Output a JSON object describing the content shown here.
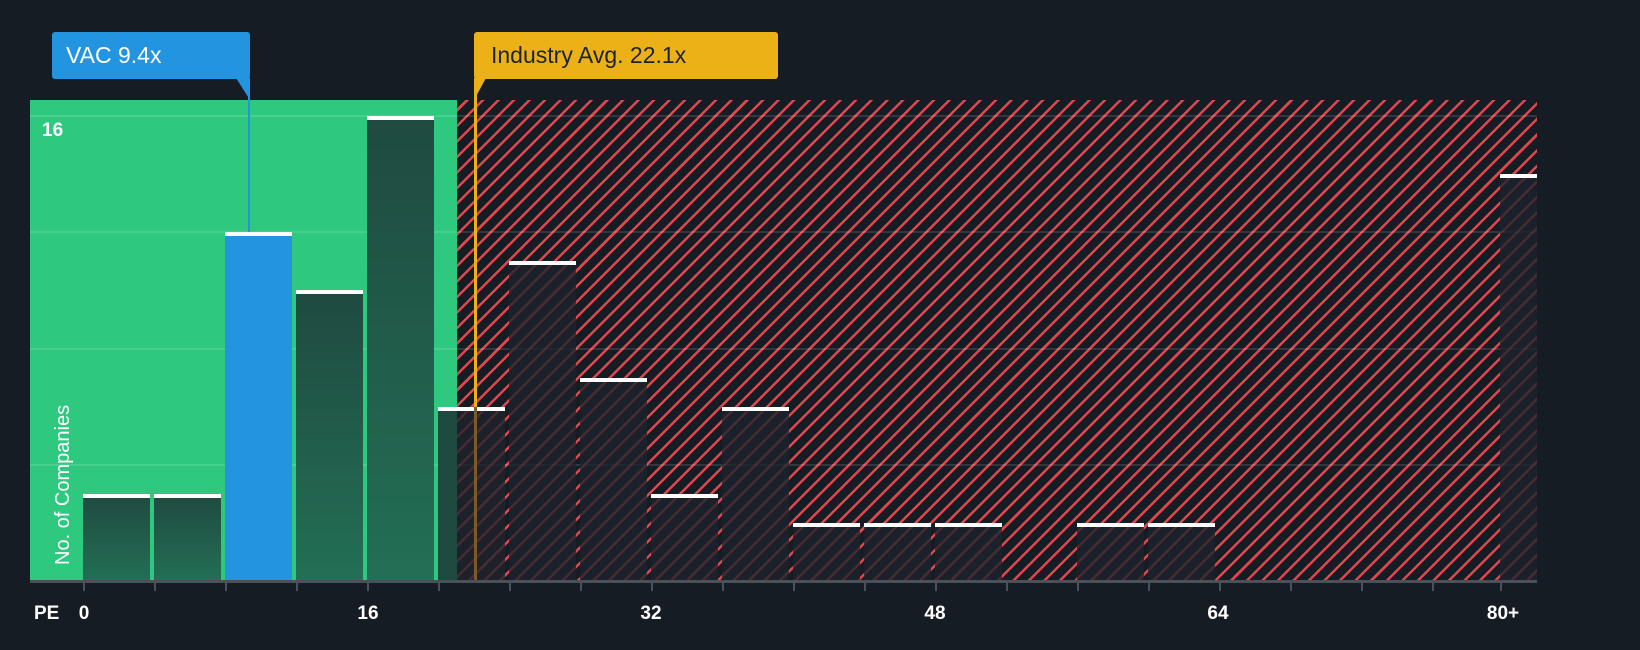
{
  "chart_data": {
    "type": "bar",
    "title": "",
    "xlabel": "PE",
    "ylabel": "No. of Companies",
    "x_ticks": [
      "0",
      "16",
      "32",
      "48",
      "64",
      "80+"
    ],
    "y_ticks": [
      "16"
    ],
    "ylim": [
      0,
      16
    ],
    "bin_width": 4,
    "categories": [
      "0-4",
      "4-8",
      "8-12",
      "12-16",
      "16-20",
      "20-24",
      "24-28",
      "28-32",
      "32-36",
      "36-40",
      "40-44",
      "44-48",
      "48-52",
      "52-56",
      "56-60",
      "60-64",
      "64-68",
      "68-72",
      "72-76",
      "76-80",
      "80+"
    ],
    "values": [
      3,
      3,
      12,
      10,
      16,
      6,
      11,
      7,
      3,
      6,
      2,
      2,
      2,
      0,
      2,
      2,
      0,
      0,
      0,
      0,
      14
    ],
    "highlight_bin": "8-12",
    "annotations": [
      {
        "label": "VAC 9.4x",
        "value": 9.4,
        "color": "#2394e0"
      },
      {
        "label": "Industry Avg. 22.1x",
        "value": 22.1,
        "color": "#ecb117"
      }
    ],
    "zones": [
      {
        "name": "undervalued",
        "from": 0,
        "to": 21,
        "color": "#2ec97f"
      },
      {
        "name": "overvalued",
        "from": 21,
        "to": "80+",
        "color": "#e0474c",
        "pattern": "diagonal-hatch"
      }
    ],
    "grid": true,
    "legend": null
  },
  "labels": {
    "company_callout": "VAC 9.4x",
    "industry_callout": "Industry Avg. 22.1x",
    "y_axis_title": "No. of Companies",
    "y_tick_top": "16",
    "x_axis_prefix": "PE",
    "x_ticks": [
      "0",
      "16",
      "32",
      "48",
      "64",
      "80+"
    ]
  },
  "colors": {
    "background": "#161c24",
    "green_zone": "#2ec97f",
    "red_hatch": "#e0474c",
    "company": "#2394e0",
    "industry": "#ecb117"
  }
}
